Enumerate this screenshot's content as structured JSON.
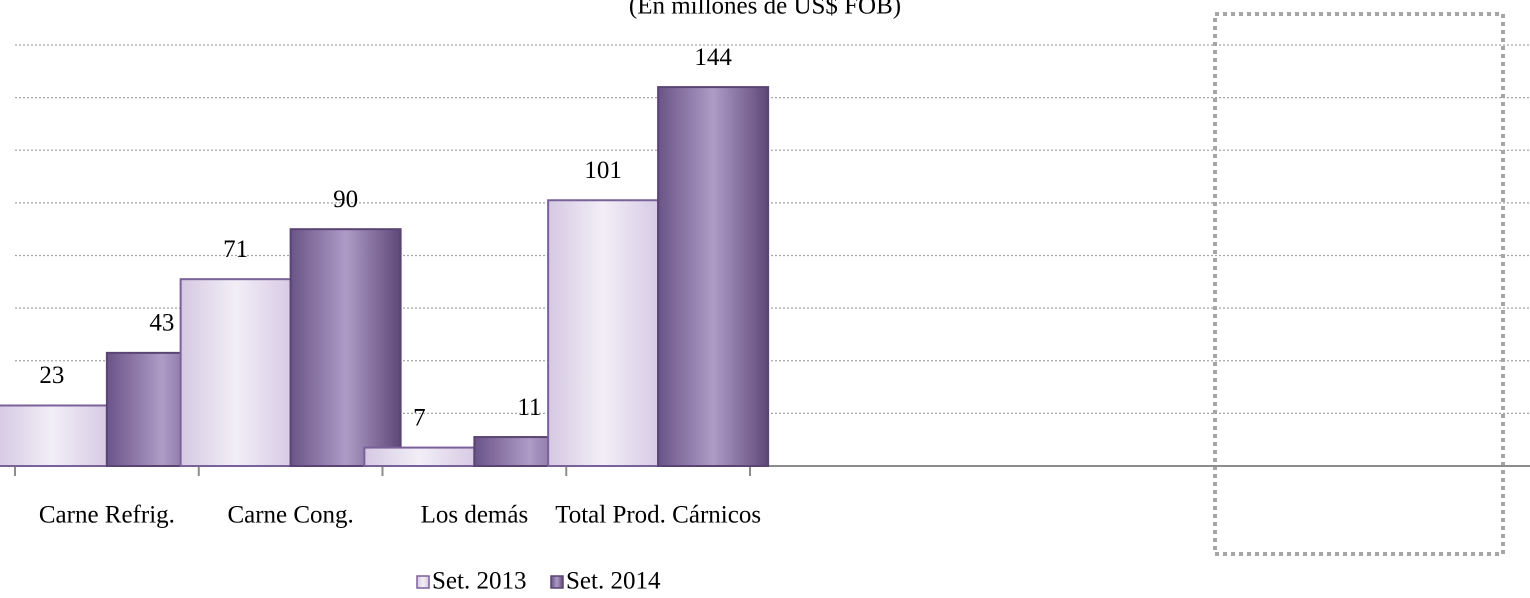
{
  "chart_data": {
    "type": "bar",
    "subtitle": "(En millones  de US$ FOB)",
    "categories": [
      "Carne Refrig.",
      "Carne Cong.",
      "Los demás",
      "Total Prod. Cárnicos"
    ],
    "series": [
      {
        "name": "Set. 2013",
        "color": "#e6ddef",
        "values": [
          23,
          71,
          7,
          101
        ]
      },
      {
        "name": "Set. 2014",
        "color": "#8d71aa",
        "values": [
          43,
          90,
          11,
          144
        ]
      }
    ],
    "ylim": [
      0,
      160
    ],
    "yticks": [
      0,
      20,
      40,
      60,
      80,
      100,
      120,
      140,
      160
    ],
    "grid": true
  }
}
